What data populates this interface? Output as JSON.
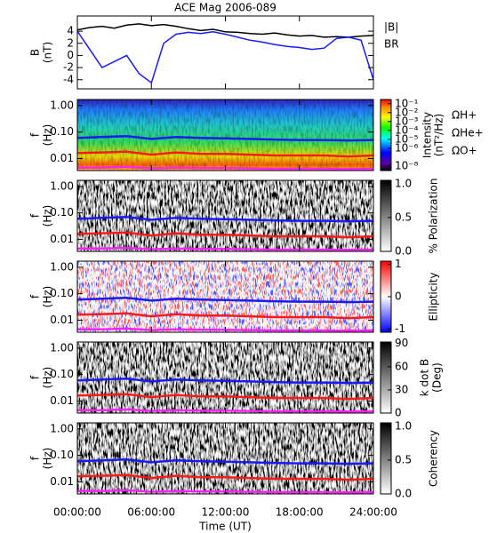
{
  "chart_data": [
    {
      "type": "line",
      "title": "ACE Mag 2006-089",
      "ylabel": [
        "B",
        "(nT)"
      ],
      "xlim": [
        0,
        24
      ],
      "xticks": [
        0,
        6,
        12,
        18,
        24
      ],
      "ylim": [
        -5.5,
        6.5
      ],
      "yticks": [
        -4,
        -2,
        0,
        2,
        4
      ],
      "x": [
        0,
        1,
        2,
        3,
        4,
        5,
        6,
        7,
        8,
        9,
        10,
        11,
        12,
        13,
        14,
        15,
        16,
        17,
        18,
        19,
        20,
        21,
        22,
        23,
        24
      ],
      "series": [
        {
          "name": "|B|",
          "color": "#000000",
          "values": [
            4.2,
            4.6,
            4.8,
            4.5,
            5.0,
            5.2,
            4.9,
            5.1,
            4.8,
            4.4,
            4.1,
            4.3,
            3.9,
            3.8,
            3.6,
            3.5,
            3.7,
            3.4,
            3.2,
            3.3,
            3.0,
            3.1,
            3.0,
            3.2,
            3.3
          ]
        },
        {
          "name": "BR",
          "color": "#1a1aff",
          "values": [
            4.0,
            1.0,
            -2.0,
            -1.0,
            0.0,
            -3.0,
            -4.5,
            2.0,
            3.5,
            3.8,
            3.6,
            3.9,
            3.5,
            3.0,
            2.5,
            2.2,
            1.8,
            1.5,
            1.3,
            1.0,
            1.2,
            2.8,
            3.0,
            2.5,
            -4.0
          ]
        }
      ]
    },
    {
      "type": "spectrogram",
      "ylabel": [
        "f",
        "(Hz)"
      ],
      "log_y": true,
      "colormap": "jet",
      "xlim": [
        0,
        24
      ],
      "xticks": [
        0,
        6,
        12,
        18,
        24
      ],
      "ylim": [
        0.0035,
        1.7
      ],
      "yticks": [
        {
          "value": 1,
          "label": "1.00"
        },
        {
          "value": 0.1,
          "label": "0.10"
        },
        {
          "value": 0.01,
          "label": "0.01"
        }
      ],
      "zlabel": [
        "Intensity",
        "(nT²/Hz)"
      ],
      "zlog": true,
      "zlim": [
        3e-09,
        0.3
      ],
      "zticks": [
        {
          "value": 0.1,
          "label": "10⁻¹"
        },
        {
          "value": 0.01,
          "label": "10⁻²"
        },
        {
          "value": 0.001,
          "label": "10⁻³"
        },
        {
          "value": 0.0001,
          "label": "10⁻⁴"
        },
        {
          "value": 1e-05,
          "label": "10⁻⁵"
        },
        {
          "value": 1e-06,
          "label": "10⁻⁶"
        },
        {
          "value": 1e-08,
          "label": "10⁻⁸"
        }
      ],
      "x": [
        0,
        2,
        4,
        6,
        8,
        10,
        12,
        14,
        16,
        18,
        20,
        22,
        24
      ],
      "series": [
        {
          "name": "ΩH+",
          "color": "#1a1aff",
          "values": [
            0.06,
            0.065,
            0.07,
            0.055,
            0.065,
            0.06,
            0.058,
            0.055,
            0.052,
            0.05,
            0.05,
            0.048,
            0.05
          ]
        },
        {
          "name": "ΩHe+",
          "color": "#ff1a1a",
          "values": [
            0.016,
            0.017,
            0.018,
            0.014,
            0.017,
            0.015,
            0.015,
            0.014,
            0.013,
            0.013,
            0.013,
            0.012,
            0.013
          ]
        },
        {
          "name": "ΩO+",
          "color": "#ff22ff",
          "values": [
            0.0045,
            0.0045,
            0.0048,
            0.0042,
            0.0045,
            0.0043,
            0.0043,
            0.0042,
            0.0041,
            0.0041,
            0.0041,
            0.004,
            0.0041
          ]
        }
      ]
    },
    {
      "type": "spectrogram",
      "ylabel": [
        "f",
        "(Hz)"
      ],
      "log_y": true,
      "colormap": "gray",
      "xlim": [
        0,
        24
      ],
      "xticks": [
        0,
        6,
        12,
        18,
        24
      ],
      "ylim": [
        0.0035,
        1.7
      ],
      "yticks": [
        {
          "value": 1,
          "label": "1.00"
        },
        {
          "value": 0.1,
          "label": "0.10"
        },
        {
          "value": 0.01,
          "label": "0.01"
        }
      ],
      "zlabel": [
        "% Polarization"
      ],
      "zlim": [
        0,
        1.05
      ],
      "zticks": [
        {
          "value": 0,
          "label": "0.0"
        },
        {
          "value": 0.5,
          "label": "0.5"
        },
        {
          "value": 1,
          "label": "1.0"
        }
      ],
      "x": [
        0,
        2,
        4,
        6,
        8,
        10,
        12,
        14,
        16,
        18,
        20,
        22,
        24
      ],
      "series": [
        {
          "color": "#1a1aff",
          "values": [
            0.06,
            0.065,
            0.07,
            0.055,
            0.065,
            0.06,
            0.058,
            0.055,
            0.052,
            0.05,
            0.05,
            0.048,
            0.05
          ]
        },
        {
          "color": "#ff1a1a",
          "values": [
            0.016,
            0.017,
            0.018,
            0.014,
            0.017,
            0.015,
            0.015,
            0.014,
            0.013,
            0.013,
            0.013,
            0.012,
            0.013
          ]
        },
        {
          "color": "#ff22ff",
          "values": [
            0.0045,
            0.0045,
            0.0048,
            0.0042,
            0.0045,
            0.0043,
            0.0043,
            0.0042,
            0.0041,
            0.0041,
            0.0041,
            0.004,
            0.0041
          ]
        }
      ]
    },
    {
      "type": "spectrogram",
      "ylabel": [
        "f",
        "(Hz)"
      ],
      "log_y": true,
      "colormap": "bwr",
      "xlim": [
        0,
        24
      ],
      "xticks": [
        0,
        6,
        12,
        18,
        24
      ],
      "ylim": [
        0.0035,
        1.7
      ],
      "yticks": [
        {
          "value": 1,
          "label": "1.00"
        },
        {
          "value": 0.1,
          "label": "0.10"
        },
        {
          "value": 0.01,
          "label": "0.01"
        }
      ],
      "zlabel": [
        "Ellipticity"
      ],
      "zlim": [
        -1.1,
        1.1
      ],
      "zticks": [
        -1,
        0,
        1
      ],
      "x": [
        0,
        2,
        4,
        6,
        8,
        10,
        12,
        14,
        16,
        18,
        20,
        22,
        24
      ],
      "series": [
        {
          "color": "#1a1aff",
          "values": [
            0.06,
            0.065,
            0.07,
            0.055,
            0.065,
            0.06,
            0.058,
            0.055,
            0.052,
            0.05,
            0.05,
            0.048,
            0.05
          ]
        },
        {
          "color": "#ff1a1a",
          "values": [
            0.016,
            0.017,
            0.018,
            0.014,
            0.017,
            0.015,
            0.015,
            0.014,
            0.013,
            0.013,
            0.013,
            0.012,
            0.013
          ]
        },
        {
          "color": "#ff22ff",
          "values": [
            0.0045,
            0.0045,
            0.0048,
            0.0042,
            0.0045,
            0.0043,
            0.0043,
            0.0042,
            0.0041,
            0.0041,
            0.0041,
            0.004,
            0.0041
          ]
        }
      ]
    },
    {
      "type": "spectrogram",
      "ylabel": [
        "f",
        "(Hz)"
      ],
      "log_y": true,
      "colormap": "gray",
      "xlim": [
        0,
        24
      ],
      "xticks": [
        0,
        6,
        12,
        18,
        24
      ],
      "ylim": [
        0.0035,
        1.7
      ],
      "yticks": [
        {
          "value": 1,
          "label": "1.00"
        },
        {
          "value": 0.1,
          "label": "0.10"
        },
        {
          "value": 0.01,
          "label": "0.01"
        }
      ],
      "zlabel": [
        "k dot B",
        "(Deg)"
      ],
      "zlim": [
        0,
        92
      ],
      "zticks": [
        0,
        30,
        60,
        90
      ],
      "x": [
        0,
        2,
        4,
        6,
        8,
        10,
        12,
        14,
        16,
        18,
        20,
        22,
        24
      ],
      "series": [
        {
          "color": "#1a1aff",
          "values": [
            0.06,
            0.065,
            0.07,
            0.055,
            0.065,
            0.06,
            0.058,
            0.055,
            0.052,
            0.05,
            0.05,
            0.048,
            0.05
          ]
        },
        {
          "color": "#ff1a1a",
          "values": [
            0.016,
            0.017,
            0.018,
            0.014,
            0.017,
            0.015,
            0.015,
            0.014,
            0.013,
            0.013,
            0.013,
            0.012,
            0.013
          ]
        },
        {
          "color": "#ff22ff",
          "values": [
            0.0045,
            0.0045,
            0.0048,
            0.0042,
            0.0045,
            0.0043,
            0.0043,
            0.0042,
            0.0041,
            0.0041,
            0.0041,
            0.004,
            0.0041
          ]
        }
      ]
    },
    {
      "type": "spectrogram",
      "ylabel": [
        "f",
        "(Hz)"
      ],
      "log_y": true,
      "colormap": "gray",
      "xlim": [
        0,
        24
      ],
      "xticks": [
        {
          "value": 0,
          "label": "00:00:00"
        },
        {
          "value": 6,
          "label": "06:00:00"
        },
        {
          "value": 12,
          "label": "12:00:00"
        },
        {
          "value": 18,
          "label": "18:00:00"
        },
        {
          "value": 24,
          "label": "24:00:00"
        }
      ],
      "xlabel": "Time (UT)",
      "ylim": [
        0.0035,
        1.7
      ],
      "yticks": [
        {
          "value": 1,
          "label": "1.00"
        },
        {
          "value": 0.1,
          "label": "0.10"
        },
        {
          "value": 0.01,
          "label": "0.01"
        }
      ],
      "zlabel": [
        "Coherency"
      ],
      "zlim": [
        0,
        1.05
      ],
      "zticks": [
        {
          "value": 0,
          "label": "0.0"
        },
        {
          "value": 0.5,
          "label": "0.5"
        },
        {
          "value": 1,
          "label": "1.0"
        }
      ],
      "x": [
        0,
        2,
        4,
        6,
        8,
        10,
        12,
        14,
        16,
        18,
        20,
        22,
        24
      ],
      "series": [
        {
          "color": "#1a1aff",
          "values": [
            0.06,
            0.065,
            0.07,
            0.055,
            0.065,
            0.06,
            0.058,
            0.055,
            0.052,
            0.05,
            0.05,
            0.048,
            0.05
          ]
        },
        {
          "color": "#ff1a1a",
          "values": [
            0.016,
            0.017,
            0.018,
            0.014,
            0.017,
            0.015,
            0.015,
            0.014,
            0.013,
            0.013,
            0.013,
            0.012,
            0.013
          ]
        },
        {
          "color": "#ff22ff",
          "values": [
            0.0045,
            0.0045,
            0.0048,
            0.0042,
            0.0045,
            0.0043,
            0.0043,
            0.0042,
            0.0041,
            0.0041,
            0.0041,
            0.004,
            0.0041
          ]
        }
      ]
    }
  ]
}
